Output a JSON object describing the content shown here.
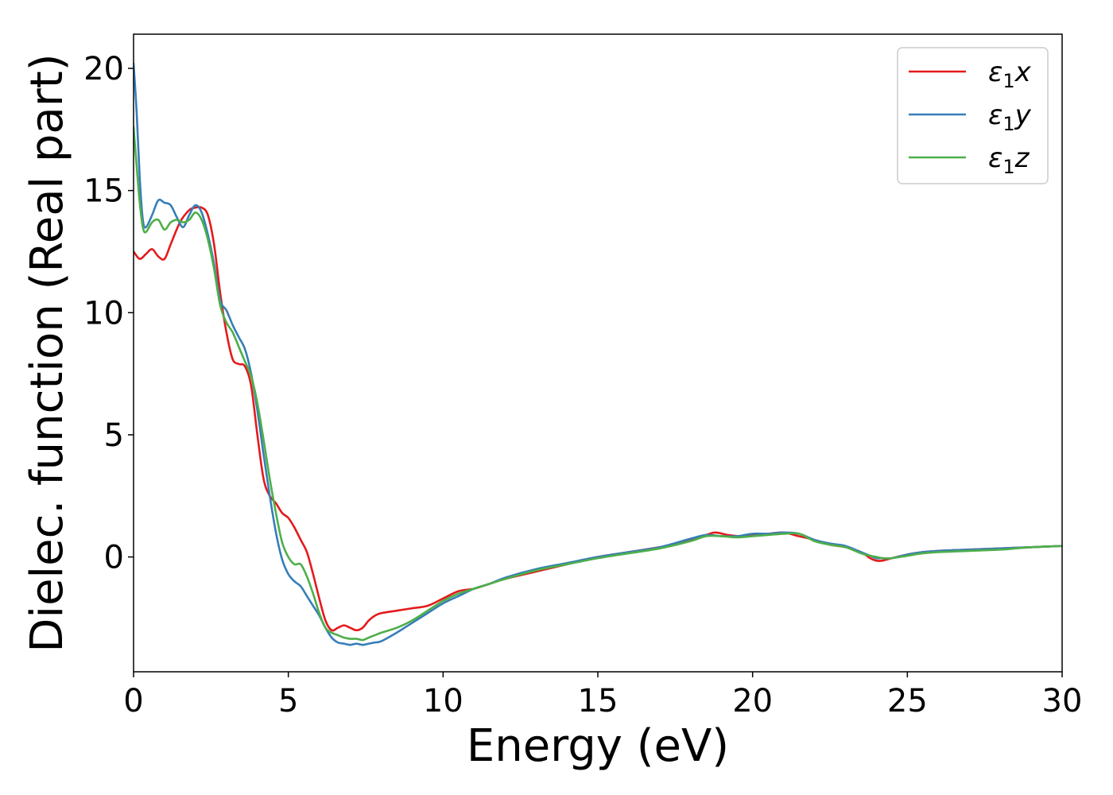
{
  "chart_data": {
    "type": "line",
    "xlabel": "Energy (eV)",
    "ylabel": "Dielec. function (Real part)",
    "xlim": [
      0,
      30
    ],
    "ylim": [
      -4.7,
      21.4
    ],
    "xticks": [
      0,
      5,
      10,
      15,
      20,
      25,
      30
    ],
    "yticks": [
      0,
      5,
      10,
      15,
      20
    ],
    "grid": false,
    "legend_position": "top-right",
    "series": [
      {
        "name": "ε1x",
        "label_base": "ε",
        "label_sub": "1",
        "label_var": "x",
        "color": "#e41a1c",
        "x": [
          0,
          0.2,
          0.4,
          0.6,
          0.8,
          1.0,
          1.2,
          1.5,
          1.8,
          2.0,
          2.2,
          2.4,
          2.6,
          2.8,
          3.0,
          3.2,
          3.4,
          3.6,
          3.8,
          4.0,
          4.2,
          4.4,
          4.6,
          4.8,
          5.0,
          5.2,
          5.4,
          5.6,
          5.8,
          6.0,
          6.2,
          6.4,
          6.6,
          6.8,
          7.0,
          7.2,
          7.4,
          7.6,
          7.8,
          8.0,
          8.5,
          9.0,
          9.5,
          10.0,
          10.5,
          11.0,
          11.5,
          12.0,
          13.0,
          14.0,
          15.0,
          16.0,
          17.0,
          17.5,
          18.0,
          18.5,
          18.8,
          19.2,
          19.6,
          20.0,
          20.5,
          21.0,
          21.5,
          22.0,
          22.5,
          23.0,
          23.5,
          23.8,
          24.0,
          24.2,
          24.5,
          25.0,
          25.5,
          26.0,
          27.0,
          28.0,
          29.0,
          30.0
        ],
        "y": [
          12.5,
          12.2,
          12.4,
          12.6,
          12.3,
          12.2,
          12.8,
          13.7,
          14.2,
          14.3,
          14.3,
          14.0,
          12.8,
          10.8,
          9.2,
          8.1,
          7.9,
          7.8,
          7.0,
          5.0,
          3.2,
          2.5,
          2.2,
          1.8,
          1.6,
          1.2,
          0.7,
          0.2,
          -0.7,
          -1.7,
          -2.6,
          -3.0,
          -2.9,
          -2.8,
          -2.9,
          -3.0,
          -2.9,
          -2.6,
          -2.4,
          -2.3,
          -2.2,
          -2.1,
          -2.0,
          -1.7,
          -1.4,
          -1.3,
          -1.1,
          -0.9,
          -0.6,
          -0.3,
          0.0,
          0.2,
          0.4,
          0.5,
          0.7,
          0.9,
          1.0,
          0.9,
          0.85,
          0.9,
          0.95,
          1.0,
          0.85,
          0.7,
          0.5,
          0.4,
          0.2,
          -0.05,
          -0.15,
          -0.15,
          -0.05,
          0.1,
          0.2,
          0.25,
          0.3,
          0.35,
          0.4,
          0.45
        ]
      },
      {
        "name": "ε1y",
        "label_base": "ε",
        "label_sub": "1",
        "label_var": "y",
        "color": "#377eb8",
        "x": [
          0,
          0.1,
          0.2,
          0.3,
          0.4,
          0.6,
          0.8,
          1.0,
          1.2,
          1.4,
          1.6,
          1.8,
          2.0,
          2.2,
          2.4,
          2.6,
          2.8,
          3.0,
          3.2,
          3.4,
          3.6,
          3.8,
          4.0,
          4.2,
          4.4,
          4.6,
          4.8,
          5.0,
          5.2,
          5.4,
          5.6,
          5.8,
          6.0,
          6.2,
          6.4,
          6.6,
          6.8,
          7.0,
          7.2,
          7.4,
          7.6,
          7.8,
          8.0,
          8.5,
          9.0,
          9.5,
          10.0,
          10.5,
          11.0,
          11.5,
          12.0,
          13.0,
          14.0,
          15.0,
          16.0,
          17.0,
          18.0,
          18.5,
          19.0,
          19.5,
          20.0,
          20.5,
          21.0,
          21.5,
          22.0,
          22.5,
          23.0,
          23.5,
          23.8,
          24.0,
          24.2,
          24.5,
          25.0,
          25.5,
          26.0,
          27.0,
          28.0,
          29.0,
          30.0
        ],
        "y": [
          20.2,
          18.2,
          15.5,
          13.8,
          13.5,
          14.0,
          14.6,
          14.5,
          14.4,
          13.9,
          13.5,
          14.0,
          14.4,
          14.1,
          13.2,
          12.0,
          10.5,
          10.1,
          9.5,
          9.0,
          8.5,
          7.5,
          6.0,
          4.2,
          2.5,
          1.0,
          -0.1,
          -0.7,
          -1.0,
          -1.2,
          -1.6,
          -2.0,
          -2.4,
          -2.9,
          -3.3,
          -3.5,
          -3.55,
          -3.6,
          -3.55,
          -3.6,
          -3.55,
          -3.5,
          -3.45,
          -3.1,
          -2.7,
          -2.3,
          -1.9,
          -1.6,
          -1.3,
          -1.1,
          -0.85,
          -0.5,
          -0.25,
          0.0,
          0.2,
          0.4,
          0.75,
          0.9,
          0.85,
          0.85,
          0.95,
          0.95,
          1.0,
          0.95,
          0.7,
          0.55,
          0.45,
          0.2,
          0.05,
          -0.05,
          -0.05,
          -0.05,
          0.1,
          0.2,
          0.25,
          0.3,
          0.35,
          0.4,
          0.45
        ]
      },
      {
        "name": "ε1z",
        "label_base": "ε",
        "label_sub": "1",
        "label_var": "z",
        "color": "#4daf4a",
        "x": [
          0,
          0.1,
          0.2,
          0.3,
          0.4,
          0.6,
          0.8,
          1.0,
          1.2,
          1.4,
          1.6,
          1.8,
          2.0,
          2.2,
          2.4,
          2.6,
          2.8,
          3.0,
          3.2,
          3.4,
          3.6,
          3.8,
          4.0,
          4.2,
          4.4,
          4.6,
          4.8,
          5.0,
          5.2,
          5.4,
          5.6,
          5.8,
          6.0,
          6.2,
          6.4,
          6.6,
          6.8,
          7.0,
          7.2,
          7.4,
          7.6,
          7.8,
          8.0,
          8.5,
          9.0,
          9.5,
          10.0,
          10.5,
          11.0,
          11.5,
          12.0,
          13.0,
          14.0,
          15.0,
          16.0,
          17.0,
          18.0,
          18.5,
          19.0,
          19.5,
          20.0,
          20.5,
          21.0,
          21.5,
          22.0,
          22.5,
          23.0,
          23.5,
          23.8,
          24.0,
          24.2,
          24.5,
          25.0,
          25.5,
          26.0,
          27.0,
          28.0,
          29.0,
          30.0
        ],
        "y": [
          17.6,
          16.0,
          14.5,
          13.5,
          13.3,
          13.7,
          13.8,
          13.4,
          13.7,
          13.8,
          13.7,
          13.8,
          14.1,
          13.8,
          13.0,
          11.8,
          10.3,
          9.6,
          9.2,
          8.6,
          8.0,
          7.4,
          6.3,
          4.8,
          3.2,
          1.8,
          0.6,
          0.0,
          -0.3,
          -0.3,
          -0.8,
          -1.5,
          -2.3,
          -2.9,
          -3.1,
          -3.2,
          -3.3,
          -3.35,
          -3.35,
          -3.4,
          -3.3,
          -3.2,
          -3.1,
          -2.9,
          -2.6,
          -2.2,
          -1.8,
          -1.5,
          -1.3,
          -1.1,
          -0.9,
          -0.55,
          -0.3,
          -0.05,
          0.15,
          0.35,
          0.65,
          0.85,
          0.85,
          0.8,
          0.85,
          0.9,
          0.95,
          0.95,
          0.65,
          0.5,
          0.4,
          0.15,
          0.05,
          0.0,
          -0.05,
          -0.05,
          0.05,
          0.15,
          0.2,
          0.25,
          0.3,
          0.4,
          0.45
        ]
      }
    ]
  }
}
